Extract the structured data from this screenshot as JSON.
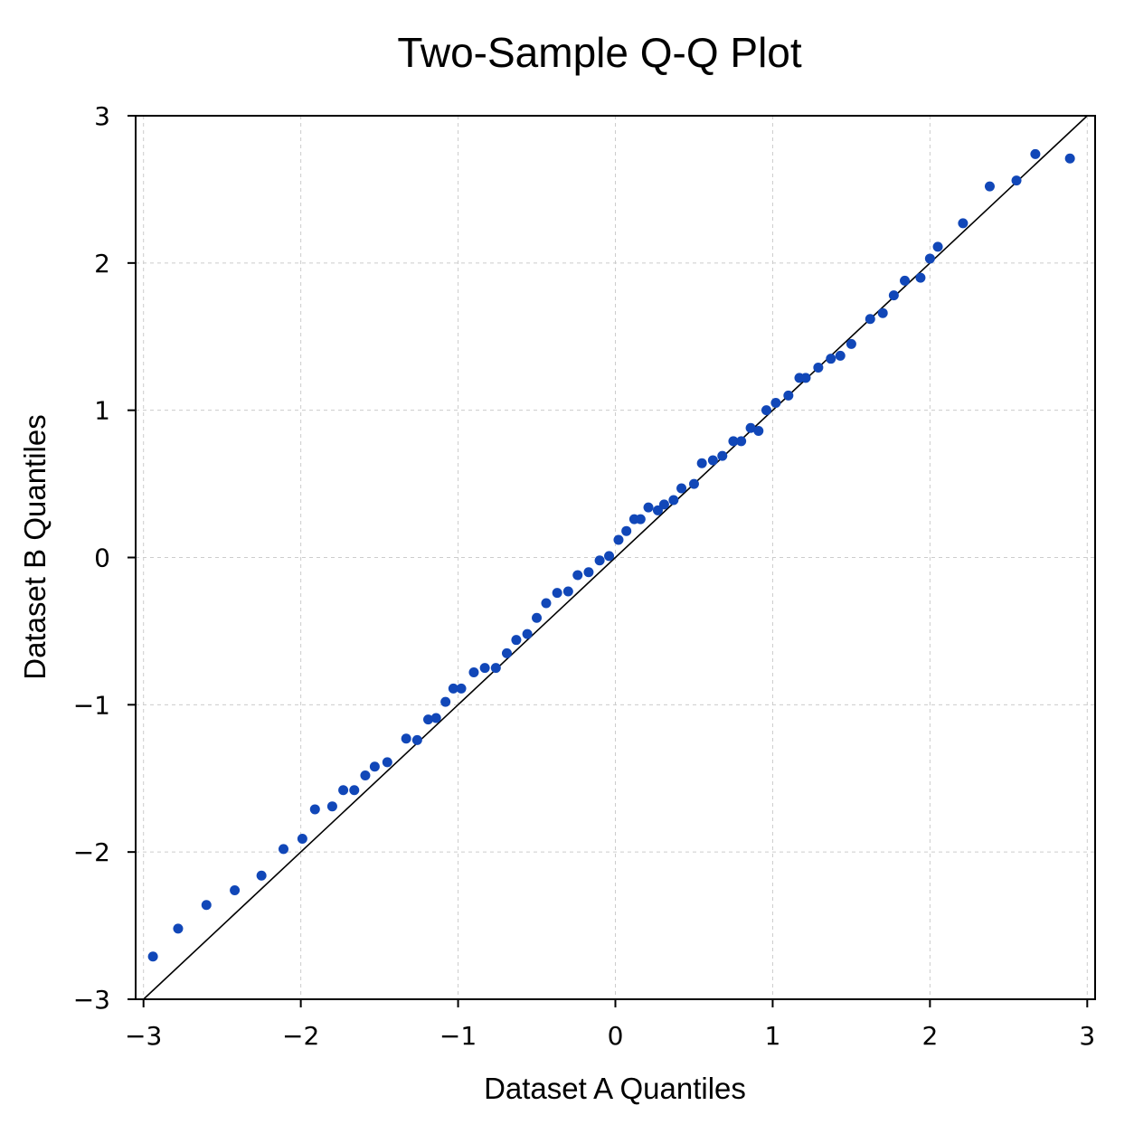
{
  "chart_data": {
    "type": "scatter",
    "title": "Two-Sample Q-Q Plot",
    "xlabel": "Dataset A Quantiles",
    "ylabel": "Dataset B Quantiles",
    "xlim": [
      -3.05,
      3.05
    ],
    "ylim": [
      -3,
      3
    ],
    "xticks": [
      -3,
      -2,
      -1,
      0,
      1,
      2,
      3
    ],
    "yticks": [
      -3,
      -2,
      -1,
      0,
      1,
      2,
      3
    ],
    "xtick_labels": [
      "−3",
      "−2",
      "−1",
      "0",
      "1",
      "2",
      "3"
    ],
    "ytick_labels": [
      "−3",
      "−2",
      "−1",
      "0",
      "1",
      "2",
      "3"
    ],
    "grid": true,
    "reference_line": "y = x",
    "marker_color": "#1147b8",
    "x": [
      -2.94,
      -2.78,
      -2.6,
      -2.42,
      -2.25,
      -2.11,
      -1.99,
      -1.91,
      -1.8,
      -1.73,
      -1.66,
      -1.59,
      -1.53,
      -1.45,
      -1.33,
      -1.26,
      -1.19,
      -1.14,
      -1.08,
      -1.03,
      -0.98,
      -0.9,
      -0.83,
      -0.76,
      -0.69,
      -0.63,
      -0.56,
      -0.5,
      -0.44,
      -0.37,
      -0.3,
      -0.24,
      -0.17,
      -0.1,
      -0.04,
      0.02,
      0.07,
      0.12,
      0.16,
      0.21,
      0.27,
      0.31,
      0.37,
      0.42,
      0.5,
      0.55,
      0.62,
      0.68,
      0.75,
      0.8,
      0.86,
      0.91,
      0.96,
      1.02,
      1.1,
      1.17,
      1.21,
      1.29,
      1.37,
      1.43,
      1.5,
      1.62,
      1.7,
      1.77,
      1.84,
      1.94,
      2.0,
      2.05,
      2.21,
      2.38,
      2.55,
      2.67,
      2.89
    ],
    "y": [
      -2.71,
      -2.52,
      -2.36,
      -2.26,
      -2.16,
      -1.98,
      -1.91,
      -1.71,
      -1.69,
      -1.58,
      -1.58,
      -1.48,
      -1.42,
      -1.39,
      -1.23,
      -1.24,
      -1.1,
      -1.09,
      -0.98,
      -0.89,
      -0.89,
      -0.78,
      -0.75,
      -0.75,
      -0.65,
      -0.56,
      -0.52,
      -0.41,
      -0.31,
      -0.24,
      -0.23,
      -0.12,
      -0.1,
      -0.02,
      0.01,
      0.12,
      0.18,
      0.26,
      0.26,
      0.34,
      0.32,
      0.36,
      0.39,
      0.47,
      0.5,
      0.64,
      0.66,
      0.69,
      0.79,
      0.79,
      0.88,
      0.86,
      1.0,
      1.05,
      1.1,
      1.22,
      1.22,
      1.29,
      1.35,
      1.37,
      1.45,
      1.62,
      1.66,
      1.78,
      1.88,
      1.9,
      2.03,
      2.11,
      2.27,
      2.52,
      2.56,
      2.74,
      2.71
    ]
  }
}
